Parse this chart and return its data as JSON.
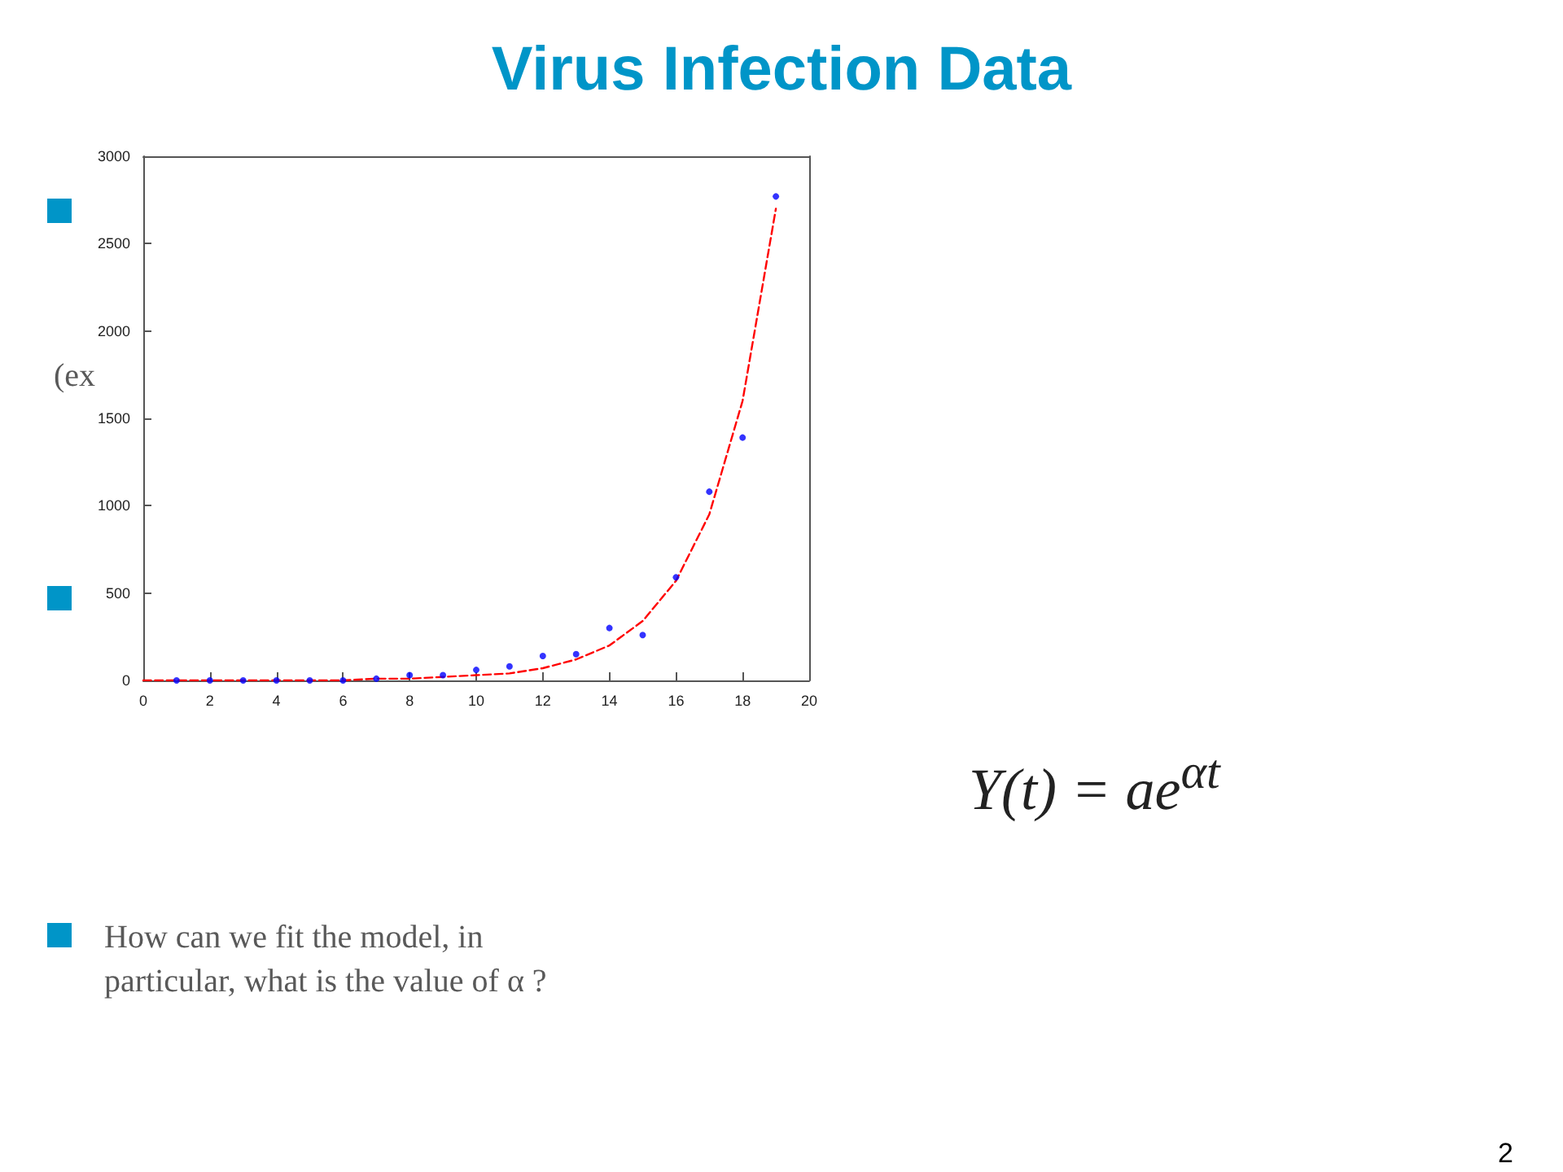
{
  "chart_data": {
    "type": "scatter",
    "title": "Virus Infection Data",
    "annotations": [
      "(ex",
      "Y(t) = ae$^{αt}$",
      "How can we fit the model, in particular, what is the value of α ?",
      "2"
    ],
    "xlim": [
      0,
      20
    ],
    "xticks": [
      0,
      2,
      4,
      6,
      8,
      10,
      12,
      14,
      16,
      18,
      20
    ],
    "ylim": [
      0,
      3000
    ],
    "yticks": [
      0,
      500,
      1000,
      1500,
      2000,
      2500,
      3000
    ],
    "grid": false,
    "series": [
      {
        "color": "#0000ff",
        "marker": "circle",
        "x": [
          1,
          2,
          3,
          4,
          5,
          6,
          7,
          8,
          9,
          10,
          11,
          12,
          13,
          14,
          15,
          16,
          17,
          18,
          19
        ],
        "values": [
          0,
          0,
          0,
          0,
          0,
          0,
          10,
          30,
          30,
          60,
          80,
          140,
          150,
          300,
          260,
          590,
          1080,
          1390,
          2770
        ]
      },
      {
        "type": "line",
        "color": "#ff0000",
        "marker": "none",
        "line_style": "dashed",
        "x": [
          0,
          1,
          2,
          3,
          4,
          5,
          6,
          7,
          8,
          9,
          10,
          11,
          12,
          13,
          14,
          15,
          16,
          17,
          18,
          19
        ],
        "values": [
          0,
          0,
          0,
          0,
          0,
          0,
          0,
          10,
          10,
          20,
          30,
          40,
          70,
          120,
          200,
          340,
          570,
          950,
          1600,
          2700
        ]
      }
    ]
  }
}
